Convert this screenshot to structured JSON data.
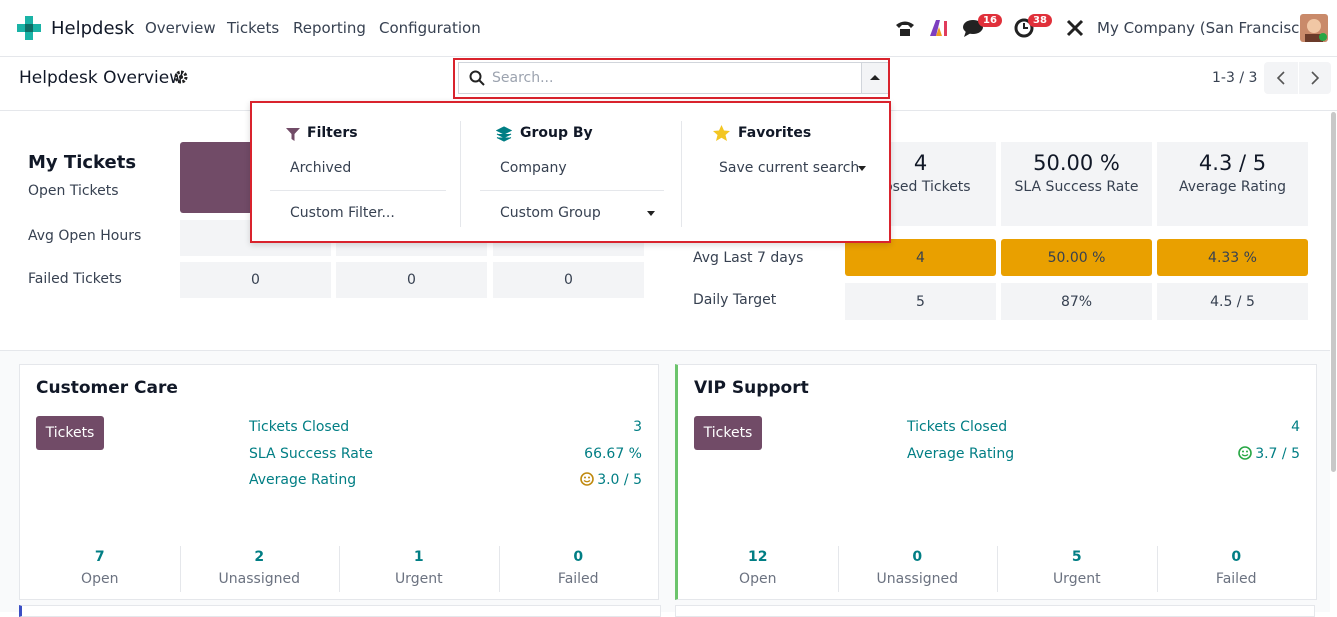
{
  "navbar": {
    "app": "Helpdesk",
    "menu": [
      "Overview",
      "Tickets",
      "Reporting",
      "Configuration"
    ],
    "chat_badge": "16",
    "activity_badge": "38",
    "company": "My Company (San Francisco)"
  },
  "control_panel": {
    "title": "Helpdesk Overview",
    "search_placeholder": "Search...",
    "pager": "1-3 / 3"
  },
  "search_dropdown": {
    "filters": {
      "title": "Filters",
      "items": [
        "Archived",
        "Custom Filter..."
      ]
    },
    "group_by": {
      "title": "Group By",
      "items": [
        "Company",
        "Custom Group"
      ]
    },
    "favorites": {
      "title": "Favorites",
      "items": [
        "Save current search"
      ]
    }
  },
  "my_tickets": {
    "title": "My Tickets",
    "rows": [
      {
        "label": "Open Tickets"
      },
      {
        "label": "Avg Open Hours"
      },
      {
        "label": "Failed Tickets",
        "values": [
          "0",
          "0",
          "0"
        ]
      }
    ]
  },
  "performance": {
    "headers": [
      {
        "value": "4",
        "label": "Closed Tickets"
      },
      {
        "value": "50.00 %",
        "label": "SLA Success Rate"
      },
      {
        "value": "4.3 / 5",
        "label": "Average Rating"
      }
    ],
    "rows": [
      {
        "label": "Avg Last 7 days",
        "values": [
          "4",
          "50.00 %",
          "4.33 %"
        ]
      },
      {
        "label": "Daily Target",
        "values": [
          "5",
          "87%",
          "4.5 / 5"
        ]
      }
    ]
  },
  "teams": [
    {
      "name": "Customer Care",
      "button": "Tickets",
      "stats": [
        {
          "label": "Tickets Closed",
          "value": "3"
        },
        {
          "label": "SLA Success Rate",
          "value": "66.67 %"
        },
        {
          "label": "Average Rating",
          "value": "3.0 / 5"
        }
      ],
      "footer": [
        {
          "value": "7",
          "label": "Open"
        },
        {
          "value": "2",
          "label": "Unassigned"
        },
        {
          "value": "1",
          "label": "Urgent"
        },
        {
          "value": "0",
          "label": "Failed"
        }
      ]
    },
    {
      "name": "VIP Support",
      "button": "Tickets",
      "stats": [
        {
          "label": "Tickets Closed",
          "value": "4"
        },
        {
          "label": "Average Rating",
          "value": "3.7 / 5"
        }
      ],
      "footer": [
        {
          "value": "12",
          "label": "Open"
        },
        {
          "value": "0",
          "label": "Unassigned"
        },
        {
          "value": "5",
          "label": "Urgent"
        },
        {
          "value": "0",
          "label": "Failed"
        }
      ]
    }
  ]
}
